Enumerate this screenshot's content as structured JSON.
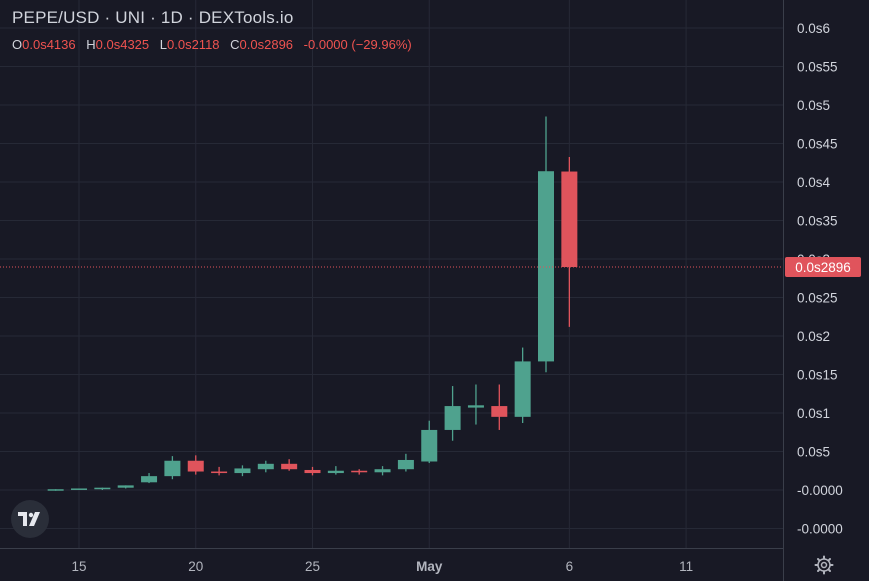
{
  "header": {
    "title": "PEPE/USD · UNI · 1D · DEXTools.io",
    "ohlc": [
      {
        "key": "O",
        "value": "0.0s4136"
      },
      {
        "key": "H",
        "value": "0.0s4325"
      },
      {
        "key": "L",
        "value": "0.0s2118"
      },
      {
        "key": "C",
        "value": "0.0s2896"
      }
    ],
    "change": "-0.0000 (−29.96%)"
  },
  "price_axis": {
    "labels": [
      "0.0s6",
      "0.0s55",
      "0.0s5",
      "0.0s45",
      "0.0s4",
      "0.0s35",
      "0.0s3",
      "0.0s25",
      "0.0s2",
      "0.0s15",
      "0.0s1",
      "0.0s5",
      "-0.0000",
      "-0.0000"
    ],
    "current_price": "0.0s2896"
  },
  "time_axis": {
    "labels": [
      "15",
      "20",
      "25",
      "May",
      "6",
      "11"
    ]
  },
  "colors": {
    "up": "#4fa28e",
    "down": "#e0545c",
    "background": "#181925",
    "grid": "#262936",
    "price_tag": "#e0545c"
  },
  "icons": {
    "logo": "tradingview-logo",
    "settings": "gear-icon"
  },
  "chart_data": {
    "type": "candlestick",
    "title": "PEPE/USD · UNI · 1D · DEXTools.io",
    "y_unit": "0.0s = 0.000000",
    "ylim": [
      -0.08,
      0.61
    ],
    "yticks": [
      0.6,
      0.55,
      0.5,
      0.45,
      0.4,
      0.35,
      0.3,
      0.25,
      0.2,
      0.15,
      0.1,
      0.05,
      0.0,
      -0.05
    ],
    "x_tick_labels": [
      "15",
      "20",
      "25",
      "May",
      "6",
      "11"
    ],
    "x_tick_days": [
      15,
      20,
      25,
      30,
      36,
      41
    ],
    "last_close": 0.2896,
    "grid": true,
    "candles": [
      {
        "day": 14,
        "o": 0.0,
        "h": 0.001,
        "l": -0.001,
        "c": 0.001
      },
      {
        "day": 15,
        "o": 0.001,
        "h": 0.002,
        "l": 0.0,
        "c": 0.002
      },
      {
        "day": 16,
        "o": 0.001,
        "h": 0.003,
        "l": 0.0,
        "c": 0.003
      },
      {
        "day": 17,
        "o": 0.003,
        "h": 0.006,
        "l": 0.002,
        "c": 0.006
      },
      {
        "day": 18,
        "o": 0.01,
        "h": 0.022,
        "l": 0.009,
        "c": 0.018
      },
      {
        "day": 19,
        "o": 0.018,
        "h": 0.044,
        "l": 0.014,
        "c": 0.038
      },
      {
        "day": 20,
        "o": 0.038,
        "h": 0.045,
        "l": 0.02,
        "c": 0.024
      },
      {
        "day": 21,
        "o": 0.024,
        "h": 0.03,
        "l": 0.019,
        "c": 0.022
      },
      {
        "day": 22,
        "o": 0.022,
        "h": 0.032,
        "l": 0.018,
        "c": 0.028
      },
      {
        "day": 23,
        "o": 0.027,
        "h": 0.038,
        "l": 0.023,
        "c": 0.034
      },
      {
        "day": 24,
        "o": 0.034,
        "h": 0.04,
        "l": 0.025,
        "c": 0.027
      },
      {
        "day": 25,
        "o": 0.026,
        "h": 0.03,
        "l": 0.019,
        "c": 0.022
      },
      {
        "day": 26,
        "o": 0.022,
        "h": 0.031,
        "l": 0.02,
        "c": 0.025
      },
      {
        "day": 27,
        "o": 0.025,
        "h": 0.027,
        "l": 0.02,
        "c": 0.023
      },
      {
        "day": 28,
        "o": 0.023,
        "h": 0.031,
        "l": 0.019,
        "c": 0.027
      },
      {
        "day": 29,
        "o": 0.027,
        "h": 0.047,
        "l": 0.024,
        "c": 0.039
      },
      {
        "day": 30,
        "o": 0.037,
        "h": 0.09,
        "l": 0.035,
        "c": 0.078
      },
      {
        "day": 31,
        "o": 0.078,
        "h": 0.135,
        "l": 0.064,
        "c": 0.109
      },
      {
        "day": 32,
        "o": 0.107,
        "h": 0.137,
        "l": 0.085,
        "c": 0.11
      },
      {
        "day": 33,
        "o": 0.109,
        "h": 0.137,
        "l": 0.078,
        "c": 0.095
      },
      {
        "day": 34,
        "o": 0.095,
        "h": 0.185,
        "l": 0.087,
        "c": 0.167
      },
      {
        "day": 35,
        "o": 0.167,
        "h": 0.485,
        "l": 0.153,
        "c": 0.414
      },
      {
        "day": 36,
        "o": 0.4136,
        "h": 0.4325,
        "l": 0.2118,
        "c": 0.2896
      }
    ]
  }
}
